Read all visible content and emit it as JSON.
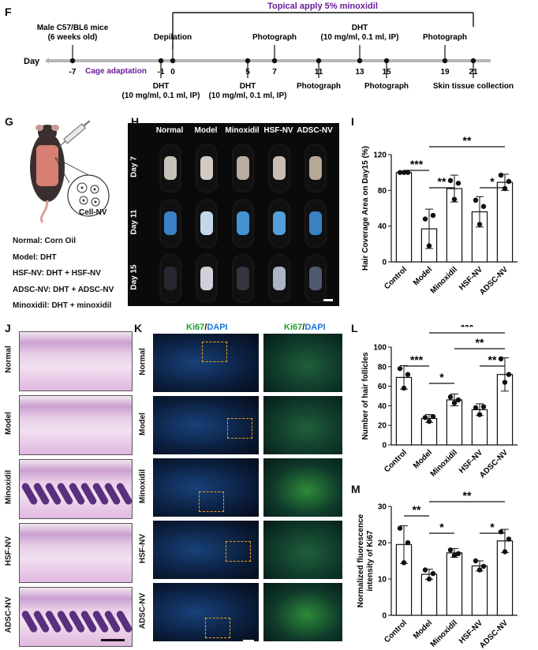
{
  "panels": {
    "F": "F",
    "G": "G",
    "H": "H",
    "I": "I",
    "J": "J",
    "K": "K",
    "L": "L",
    "M": "M"
  },
  "timeline": {
    "title": "Topical apply 5% minoxidil",
    "day_label": "Day",
    "cage": "Cage adaptation",
    "ticks": [
      {
        "day": "-7",
        "top": [
          "Male C57/BL6 mice",
          "(6 weeks old)"
        ],
        "bottom": []
      },
      {
        "day": "-1",
        "top": [],
        "bottom": [
          "DHT",
          "(10 mg/ml, 0.1 ml, IP)"
        ]
      },
      {
        "day": "0",
        "top": [
          "Depilation"
        ],
        "bottom": []
      },
      {
        "day": "5",
        "top": [],
        "bottom": [
          "DHT",
          "(10 mg/ml, 0.1 ml, IP)"
        ]
      },
      {
        "day": "7",
        "top": [
          "Photograph"
        ],
        "bottom": []
      },
      {
        "day": "11",
        "top": [],
        "bottom": [
          "Photograph"
        ]
      },
      {
        "day": "13",
        "top": [
          "DHT",
          "(10 mg/ml, 0.1 ml, IP)"
        ],
        "bottom": []
      },
      {
        "day": "15",
        "top": [],
        "bottom": [
          "Photograph"
        ]
      },
      {
        "day": "19",
        "top": [
          "Photograph"
        ],
        "bottom": []
      },
      {
        "day": "21",
        "top": [],
        "bottom": [
          "Skin tissue collection"
        ]
      }
    ]
  },
  "groups_panel": {
    "cell_nv": "Cell-NV",
    "lines": [
      "Normal: Corn Oil",
      "Model: DHT",
      "HSF-NV: DHT + HSF-NV",
      "ADSC-NV: DHT + ADSC-NV",
      "Minoxidil: DHT + minoxidil"
    ]
  },
  "photo_grid": {
    "columns": [
      "Normal",
      "Model",
      "Minoxidil",
      "HSF-NV",
      "ADSC-NV"
    ],
    "rows": [
      "Day 7",
      "Day 11",
      "Day 15"
    ]
  },
  "he_rows": [
    "Normal",
    "Model",
    "Minoxidil",
    "HSF-NV",
    "ADSC-NV"
  ],
  "if_panel": {
    "rows": [
      "Normal",
      "Model",
      "Minoxidil",
      "HSF-NV",
      "ADSC-NV"
    ],
    "header_ki67": "Ki67",
    "header_sep": "/",
    "header_dapi": "DAPI"
  },
  "colors": {
    "ki67": "#1fa02a",
    "dapi": "#1a74d6",
    "dashed": "#f0a21a",
    "purple": "#6a1b9a"
  },
  "chart_data": [
    {
      "id": "I",
      "type": "bar",
      "ylabel": "Hair Coverage Area on Day15 (%)",
      "categories": [
        "Control",
        "Model",
        "Minoxidil",
        "HSF-NV",
        "ADSC-NV"
      ],
      "values": [
        100,
        37,
        82,
        56,
        89
      ],
      "errors": [
        1,
        22,
        15,
        17,
        9
      ],
      "points": [
        [
          100,
          100,
          100
        ],
        [
          48,
          18,
          52
        ],
        [
          91,
          70,
          88
        ],
        [
          69,
          42,
          62
        ],
        [
          97,
          82,
          90
        ]
      ],
      "ylim": [
        0,
        120
      ],
      "yticks": [
        0,
        40,
        80,
        120
      ],
      "significance": [
        {
          "from": 0,
          "to": 1,
          "label": "***"
        },
        {
          "from": 1,
          "to": 2,
          "label": "**"
        },
        {
          "from": 3,
          "to": 4,
          "label": "*"
        },
        {
          "from": 1,
          "to": 4,
          "label": "**"
        }
      ]
    },
    {
      "id": "L",
      "type": "bar",
      "ylabel": "Number of hair follicles",
      "categories": [
        "Control",
        "Model",
        "Minoxidil",
        "HSF-NV",
        "ADSC-NV"
      ],
      "values": [
        69,
        27,
        46,
        36,
        72
      ],
      "errors": [
        12,
        4,
        6,
        6,
        17
      ],
      "points": [
        [
          78,
          58,
          72
        ],
        [
          28,
          24,
          29
        ],
        [
          49,
          43,
          46
        ],
        [
          38,
          31,
          39
        ],
        [
          88,
          64,
          72
        ]
      ],
      "ylim": [
        0,
        100
      ],
      "yticks": [
        0,
        20,
        40,
        60,
        80,
        100
      ],
      "significance": [
        {
          "from": 0,
          "to": 1,
          "label": "***"
        },
        {
          "from": 1,
          "to": 2,
          "label": "*"
        },
        {
          "from": 3,
          "to": 4,
          "label": "**"
        },
        {
          "from": 2,
          "to": 4,
          "label": "**"
        },
        {
          "from": 1,
          "to": 4,
          "label": "***"
        }
      ]
    },
    {
      "id": "M",
      "type": "bar",
      "ylabel": "Normalized fluorescence intensity of Ki67",
      "categories": [
        "Control",
        "Model",
        "Minoxidil",
        "HSF-NV",
        "ADSC-NV"
      ],
      "values": [
        19.5,
        11.3,
        17.2,
        13.6,
        20.5
      ],
      "errors": [
        5.2,
        1.4,
        1.2,
        1.4,
        3.2
      ],
      "points": [
        [
          24,
          14.5,
          20
        ],
        [
          12.5,
          10,
          11.5
        ],
        [
          18,
          16.5,
          17
        ],
        [
          15,
          12.5,
          13.5
        ],
        [
          23,
          17.5,
          21
        ]
      ],
      "ylim": [
        0,
        30
      ],
      "yticks": [
        0,
        10,
        20,
        30
      ],
      "significance": [
        {
          "from": 0,
          "to": 1,
          "label": "**"
        },
        {
          "from": 1,
          "to": 2,
          "label": "*"
        },
        {
          "from": 3,
          "to": 4,
          "label": "*"
        },
        {
          "from": 1,
          "to": 4,
          "label": "**"
        }
      ]
    }
  ]
}
